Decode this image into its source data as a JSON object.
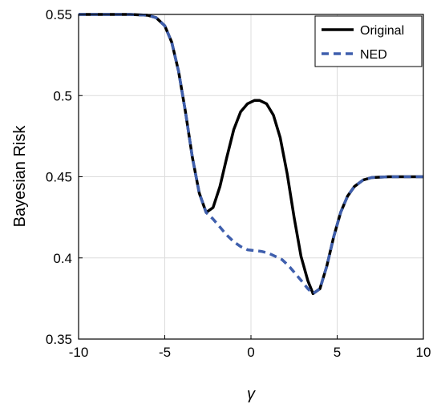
{
  "chart_data": {
    "type": "line",
    "xlabel": "γ",
    "ylabel": "Bayesian Risk",
    "xlim": [
      -10,
      10
    ],
    "ylim": [
      0.35,
      0.55
    ],
    "xticks": [
      -10,
      -5,
      0,
      5,
      10
    ],
    "yticks": [
      0.35,
      0.4,
      0.45,
      0.5,
      0.55
    ],
    "xtick_labels": [
      "-10",
      "-5",
      "0",
      "5",
      "10"
    ],
    "ytick_labels": [
      "0.35",
      "0.4",
      "0.45",
      "0.5",
      "0.55"
    ],
    "grid": true,
    "legend_position": "top-right",
    "series": [
      {
        "name": "Original",
        "color": "#000000",
        "style": "solid",
        "x": [
          -10,
          -7,
          -6,
          -5.5,
          -5,
          -4.6,
          -4.2,
          -3.8,
          -3.4,
          -3.0,
          -2.6,
          -2.2,
          -1.8,
          -1.4,
          -1.0,
          -0.6,
          -0.2,
          0.2,
          0.5,
          0.9,
          1.3,
          1.7,
          2.1,
          2.5,
          2.9,
          3.3,
          3.6,
          4.0,
          4.4,
          4.8,
          5.2,
          5.6,
          6.0,
          6.5,
          7.0,
          8.0,
          10
        ],
        "y": [
          0.55,
          0.55,
          0.5495,
          0.548,
          0.543,
          0.533,
          0.515,
          0.49,
          0.462,
          0.44,
          0.428,
          0.431,
          0.444,
          0.462,
          0.479,
          0.49,
          0.495,
          0.497,
          0.497,
          0.495,
          0.488,
          0.474,
          0.452,
          0.425,
          0.401,
          0.386,
          0.378,
          0.381,
          0.395,
          0.413,
          0.428,
          0.438,
          0.444,
          0.448,
          0.4495,
          0.45,
          0.45
        ]
      },
      {
        "name": "NED",
        "color": "#3f5fad",
        "style": "dashed",
        "x": [
          -10,
          -7,
          -6,
          -5.5,
          -5,
          -4.6,
          -4.2,
          -3.8,
          -3.4,
          -3.0,
          -2.6,
          -2.2,
          -1.8,
          -1.4,
          -1.0,
          -0.6,
          -0.2,
          0.2,
          0.6,
          1.0,
          1.4,
          1.8,
          2.2,
          2.6,
          3.0,
          3.3,
          3.6,
          4.0,
          4.4,
          4.8,
          5.2,
          5.6,
          6.0,
          6.5,
          7.0,
          8.0,
          10
        ],
        "y": [
          0.55,
          0.55,
          0.5495,
          0.548,
          0.543,
          0.533,
          0.515,
          0.49,
          0.462,
          0.44,
          0.428,
          0.424,
          0.419,
          0.414,
          0.41,
          0.407,
          0.405,
          0.4045,
          0.404,
          0.403,
          0.401,
          0.399,
          0.395,
          0.39,
          0.385,
          0.381,
          0.378,
          0.381,
          0.395,
          0.413,
          0.428,
          0.438,
          0.444,
          0.448,
          0.4495,
          0.45,
          0.45
        ]
      }
    ]
  }
}
